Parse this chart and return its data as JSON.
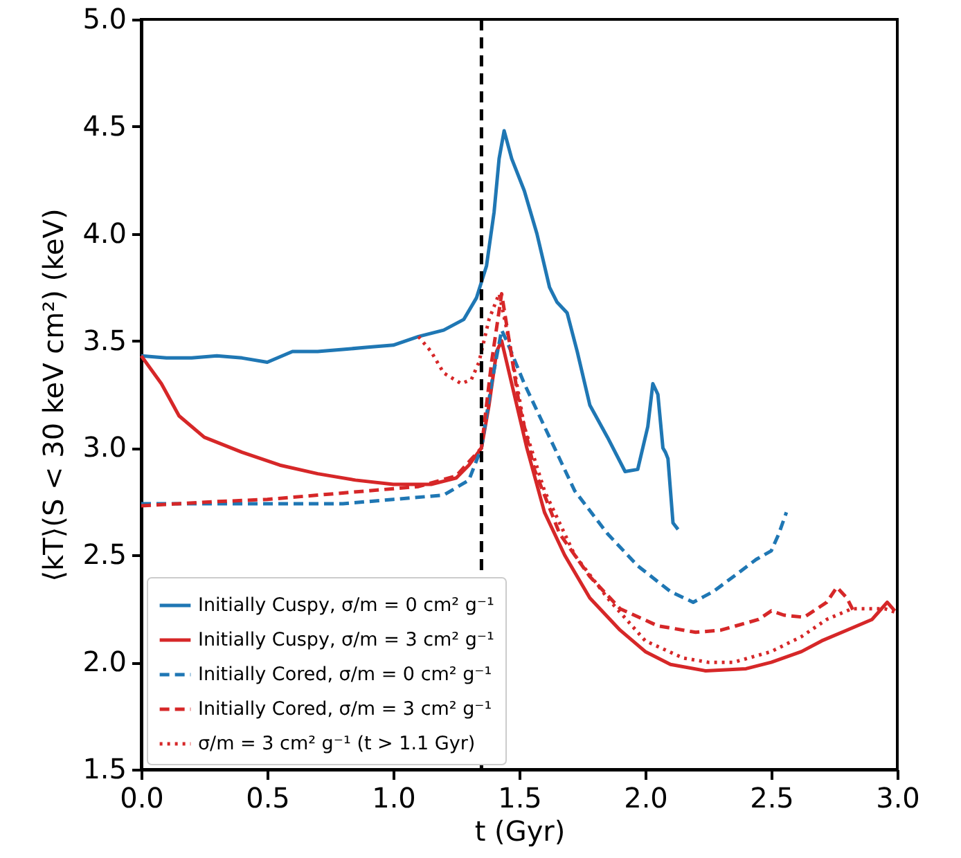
{
  "chart_data": {
    "type": "line",
    "xlabel": "t (Gyr)",
    "ylabel": "⟨kT⟩(S < 30 keV cm²) (keV)",
    "xlim": [
      0,
      3
    ],
    "ylim": [
      1.5,
      5
    ],
    "xticks": [
      {
        "value": 0,
        "label": "0.0"
      },
      0.5,
      {
        "value": 1,
        "label": "1.0"
      },
      1.5,
      {
        "value": 2,
        "label": "2.0"
      },
      2.5,
      {
        "value": 3,
        "label": "3.0"
      }
    ],
    "yticks": [
      1.5,
      {
        "value": 2,
        "label": "2.0"
      },
      2.5,
      {
        "value": 3,
        "label": "3.0"
      },
      3.5,
      {
        "value": 4,
        "label": "4.0"
      },
      4.5,
      {
        "value": 5,
        "label": "5.0"
      }
    ],
    "grid": false,
    "legend": "bottom left",
    "marker": "none",
    "ref_lines": [
      {
        "axis": "x",
        "value": 1.35,
        "color": "#000000",
        "line_style": "dashed"
      }
    ],
    "series": [
      {
        "name": "Initially Cuspy, σ/m = 0 cm² g⁻¹",
        "color": "#1f77b4",
        "line_style": "solid",
        "x": [
          0,
          0.1,
          0.2,
          0.3,
          0.4,
          0.5,
          0.6,
          0.7,
          0.8,
          0.9,
          1.0,
          1.1,
          1.2,
          1.28,
          1.33,
          1.37,
          1.4,
          1.42,
          1.44,
          1.47,
          1.52,
          1.57,
          1.62,
          1.65,
          1.69,
          1.73,
          1.78,
          1.85,
          1.92,
          1.97,
          2.01,
          2.03,
          2.05,
          2.07,
          2.08,
          2.09,
          2.11,
          2.13
        ],
        "values": [
          3.43,
          3.42,
          3.42,
          3.43,
          3.42,
          3.4,
          3.45,
          3.45,
          3.46,
          3.47,
          3.48,
          3.52,
          3.55,
          3.6,
          3.7,
          3.85,
          4.1,
          4.35,
          4.48,
          4.35,
          4.2,
          4.0,
          3.75,
          3.68,
          3.63,
          3.45,
          3.2,
          3.05,
          2.89,
          2.9,
          3.1,
          3.3,
          3.25,
          3.0,
          2.98,
          2.95,
          2.65,
          2.62
        ]
      },
      {
        "name": "Initially Cuspy, σ/m = 3 cm² g⁻¹",
        "color": "#d62728",
        "line_style": "solid",
        "x": [
          0,
          0.08,
          0.15,
          0.25,
          0.4,
          0.55,
          0.7,
          0.85,
          1.0,
          1.15,
          1.25,
          1.3,
          1.35,
          1.38,
          1.41,
          1.43,
          1.47,
          1.53,
          1.6,
          1.68,
          1.78,
          1.9,
          2.0,
          2.1,
          2.24,
          2.4,
          2.5,
          2.62,
          2.7,
          2.8,
          2.9,
          2.96,
          2.99
        ],
        "values": [
          3.43,
          3.3,
          3.15,
          3.05,
          2.98,
          2.92,
          2.88,
          2.85,
          2.83,
          2.83,
          2.86,
          2.92,
          3.0,
          3.2,
          3.45,
          3.5,
          3.3,
          3.0,
          2.7,
          2.5,
          2.3,
          2.15,
          2.05,
          1.99,
          1.96,
          1.97,
          2.0,
          2.05,
          2.1,
          2.15,
          2.2,
          2.28,
          2.24
        ]
      },
      {
        "name": "Initially Cored, σ/m = 0 cm² g⁻¹",
        "color": "#1f77b4",
        "line_style": "dashed",
        "x": [
          0,
          0.2,
          0.4,
          0.6,
          0.8,
          1.0,
          1.2,
          1.3,
          1.35,
          1.39,
          1.43,
          1.45,
          1.52,
          1.62,
          1.72,
          1.85,
          1.97,
          2.1,
          2.19,
          2.27,
          2.35,
          2.44,
          2.5,
          2.53,
          2.56
        ],
        "values": [
          2.74,
          2.74,
          2.74,
          2.74,
          2.74,
          2.76,
          2.78,
          2.85,
          3.0,
          3.3,
          3.55,
          3.5,
          3.3,
          3.05,
          2.8,
          2.6,
          2.45,
          2.33,
          2.28,
          2.33,
          2.4,
          2.48,
          2.52,
          2.6,
          2.7
        ]
      },
      {
        "name": "Initially Cored, σ/m = 3 cm² g⁻¹",
        "color": "#d62728",
        "line_style": "dashed",
        "x": [
          0,
          0.3,
          0.5,
          0.7,
          0.9,
          1.1,
          1.25,
          1.35,
          1.39,
          1.43,
          1.46,
          1.5,
          1.56,
          1.66,
          1.78,
          1.9,
          2.05,
          2.2,
          2.3,
          2.45,
          2.5,
          2.55,
          2.63,
          2.72,
          2.76,
          2.8,
          2.83
        ],
        "values": [
          2.73,
          2.75,
          2.76,
          2.78,
          2.8,
          2.82,
          2.87,
          3.0,
          3.4,
          3.72,
          3.5,
          3.2,
          2.9,
          2.6,
          2.4,
          2.25,
          2.17,
          2.14,
          2.15,
          2.2,
          2.24,
          2.22,
          2.21,
          2.28,
          2.35,
          2.3,
          2.23
        ]
      },
      {
        "name": "σ/m = 3 cm² g⁻¹ (t > 1.1 Gyr)",
        "color": "#d62728",
        "line_style": "dotted",
        "x": [
          1.1,
          1.15,
          1.2,
          1.27,
          1.31,
          1.34,
          1.38,
          1.42,
          1.46,
          1.52,
          1.6,
          1.72,
          1.85,
          2.0,
          2.15,
          2.25,
          2.35,
          2.5,
          2.62,
          2.72,
          2.82,
          2.95,
          3.0
        ],
        "values": [
          3.52,
          3.45,
          3.35,
          3.3,
          3.32,
          3.4,
          3.6,
          3.72,
          3.5,
          3.1,
          2.8,
          2.5,
          2.3,
          2.1,
          2.02,
          2.0,
          2.0,
          2.05,
          2.12,
          2.2,
          2.25,
          2.25,
          2.23
        ]
      }
    ]
  }
}
